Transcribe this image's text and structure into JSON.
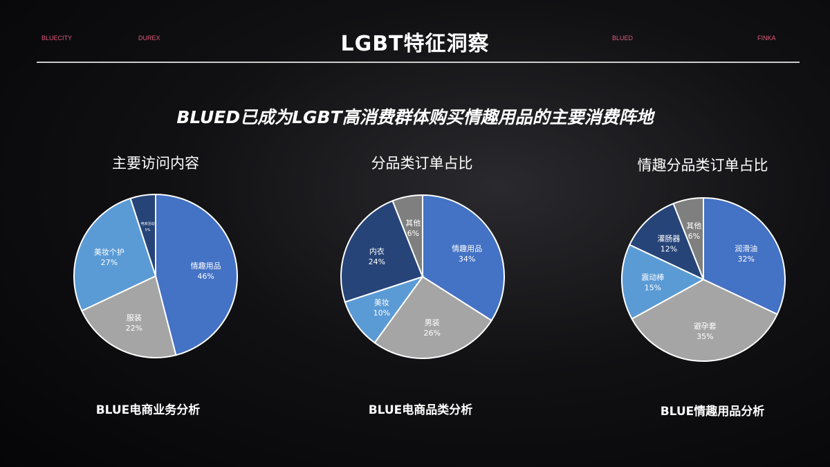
{
  "nav": [
    "BLUECITY",
    "DUREX",
    "BLUED",
    "FINKA"
  ],
  "title": "LGBT特征洞察",
  "subtitle": "BLUED已成为LGBT高消费群体购买情趣用品的主要消费阵地",
  "chart_data": [
    {
      "type": "pie",
      "title": "主要访问内容",
      "caption": "BLUE电商业务分析",
      "categories": [
        "情趣用品",
        "服装",
        "美妆个护",
        "电商活动"
      ],
      "values": [
        46,
        22,
        27,
        5
      ],
      "labels": [
        "46%",
        "22%",
        "27%",
        "5%"
      ],
      "colors": [
        "#4472C4",
        "#A5A5A5",
        "#5B9BD5",
        "#264478"
      ]
    },
    {
      "type": "pie",
      "title": "分品类订单占比",
      "caption": "BLUE电商品类分析",
      "categories": [
        "情趣用品",
        "男装",
        "美妆",
        "内衣",
        "其他"
      ],
      "values": [
        34,
        26,
        10,
        24,
        6
      ],
      "labels": [
        "34%",
        "26%",
        "10%",
        "24%",
        "6%"
      ],
      "colors": [
        "#4472C4",
        "#A5A5A5",
        "#5B9BD5",
        "#264478",
        "#7F7F7F"
      ]
    },
    {
      "type": "pie",
      "title": "情趣分品类订单占比",
      "caption": "BLUE情趣用品分析",
      "categories": [
        "润滑油",
        "避孕套",
        "震动棒",
        "灌肠器",
        "其他"
      ],
      "values": [
        32,
        35,
        15,
        12,
        6
      ],
      "labels": [
        "32%",
        "35%",
        "15%",
        "12%",
        "6%"
      ],
      "colors": [
        "#4472C4",
        "#A5A5A5",
        "#5B9BD5",
        "#264478",
        "#7F7F7F"
      ]
    }
  ]
}
